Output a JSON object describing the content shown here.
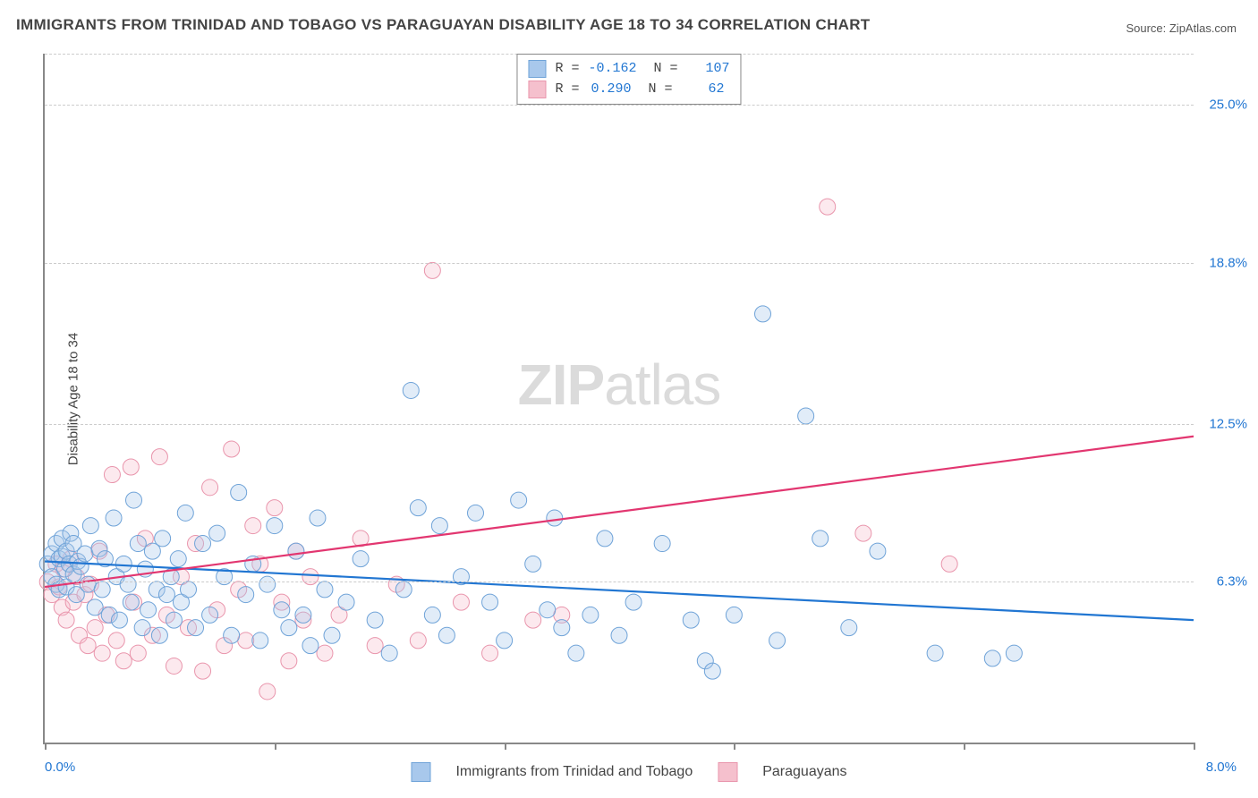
{
  "title": "IMMIGRANTS FROM TRINIDAD AND TOBAGO VS PARAGUAYAN DISABILITY AGE 18 TO 34 CORRELATION CHART",
  "source_prefix": "Source: ",
  "source_name": "ZipAtlas.com",
  "ylabel": "Disability Age 18 to 34",
  "watermark_zip": "ZIP",
  "watermark_atlas": "atlas",
  "chart": {
    "type": "scatter-with-regression",
    "xlim": [
      0,
      8
    ],
    "ylim": [
      0,
      27
    ],
    "x_axis_label_min": "0.0%",
    "x_axis_label_max": "8.0%",
    "x_min_color": "#2176d2",
    "x_max_color": "#2176d2",
    "y_gridlines": [
      6.3,
      12.5,
      18.8,
      25.0
    ],
    "y_grid_labels": [
      "6.3%",
      "12.5%",
      "18.8%",
      "25.0%"
    ],
    "y_grid_label_color": "#2176d2",
    "grid_color": "#cccccc",
    "axis_color": "#888888",
    "background_color": "#ffffff",
    "x_ticks": [
      0.0,
      1.6,
      3.2,
      4.8,
      6.4,
      8.0
    ],
    "marker_radius": 9,
    "marker_stroke_width": 1,
    "marker_fill_opacity": 0.35,
    "line_width": 2.2,
    "series": [
      {
        "name": "Immigrants from Trinidad and Tobago",
        "color_fill": "#a8c8ec",
        "color_stroke": "#6fa3d8",
        "line_color": "#2176d2",
        "R": "-0.162",
        "N": "107",
        "regression": {
          "x1": 0,
          "y1": 7.1,
          "x2": 8,
          "y2": 4.8
        },
        "points": [
          [
            0.02,
            7.0
          ],
          [
            0.05,
            6.5
          ],
          [
            0.05,
            7.4
          ],
          [
            0.08,
            7.8
          ],
          [
            0.08,
            6.2
          ],
          [
            0.1,
            7.2
          ],
          [
            0.1,
            6.0
          ],
          [
            0.12,
            8.0
          ],
          [
            0.12,
            7.3
          ],
          [
            0.14,
            6.8
          ],
          [
            0.15,
            7.5
          ],
          [
            0.15,
            6.1
          ],
          [
            0.17,
            7.0
          ],
          [
            0.18,
            8.2
          ],
          [
            0.2,
            6.6
          ],
          [
            0.2,
            7.8
          ],
          [
            0.22,
            5.8
          ],
          [
            0.23,
            7.1
          ],
          [
            0.25,
            6.9
          ],
          [
            0.28,
            7.4
          ],
          [
            0.3,
            6.2
          ],
          [
            0.32,
            8.5
          ],
          [
            0.35,
            5.3
          ],
          [
            0.38,
            7.6
          ],
          [
            0.4,
            6.0
          ],
          [
            0.42,
            7.2
          ],
          [
            0.45,
            5.0
          ],
          [
            0.48,
            8.8
          ],
          [
            0.5,
            6.5
          ],
          [
            0.52,
            4.8
          ],
          [
            0.55,
            7.0
          ],
          [
            0.58,
            6.2
          ],
          [
            0.6,
            5.5
          ],
          [
            0.62,
            9.5
          ],
          [
            0.65,
            7.8
          ],
          [
            0.68,
            4.5
          ],
          [
            0.7,
            6.8
          ],
          [
            0.72,
            5.2
          ],
          [
            0.75,
            7.5
          ],
          [
            0.78,
            6.0
          ],
          [
            0.8,
            4.2
          ],
          [
            0.82,
            8.0
          ],
          [
            0.85,
            5.8
          ],
          [
            0.88,
            6.5
          ],
          [
            0.9,
            4.8
          ],
          [
            0.93,
            7.2
          ],
          [
            0.95,
            5.5
          ],
          [
            0.98,
            9.0
          ],
          [
            1.0,
            6.0
          ],
          [
            1.05,
            4.5
          ],
          [
            1.1,
            7.8
          ],
          [
            1.15,
            5.0
          ],
          [
            1.2,
            8.2
          ],
          [
            1.25,
            6.5
          ],
          [
            1.3,
            4.2
          ],
          [
            1.35,
            9.8
          ],
          [
            1.4,
            5.8
          ],
          [
            1.45,
            7.0
          ],
          [
            1.5,
            4.0
          ],
          [
            1.55,
            6.2
          ],
          [
            1.6,
            8.5
          ],
          [
            1.65,
            5.2
          ],
          [
            1.7,
            4.5
          ],
          [
            1.75,
            7.5
          ],
          [
            1.8,
            5.0
          ],
          [
            1.85,
            3.8
          ],
          [
            1.9,
            8.8
          ],
          [
            1.95,
            6.0
          ],
          [
            2.0,
            4.2
          ],
          [
            2.1,
            5.5
          ],
          [
            2.2,
            7.2
          ],
          [
            2.3,
            4.8
          ],
          [
            2.4,
            3.5
          ],
          [
            2.5,
            6.0
          ],
          [
            2.55,
            13.8
          ],
          [
            2.6,
            9.2
          ],
          [
            2.7,
            5.0
          ],
          [
            2.75,
            8.5
          ],
          [
            2.8,
            4.2
          ],
          [
            2.9,
            6.5
          ],
          [
            3.0,
            9.0
          ],
          [
            3.1,
            5.5
          ],
          [
            3.2,
            4.0
          ],
          [
            3.3,
            9.5
          ],
          [
            3.4,
            7.0
          ],
          [
            3.5,
            5.2
          ],
          [
            3.55,
            8.8
          ],
          [
            3.6,
            4.5
          ],
          [
            3.7,
            3.5
          ],
          [
            3.8,
            5.0
          ],
          [
            3.9,
            8.0
          ],
          [
            4.0,
            4.2
          ],
          [
            4.1,
            5.5
          ],
          [
            4.3,
            7.8
          ],
          [
            4.5,
            4.8
          ],
          [
            4.6,
            3.2
          ],
          [
            4.65,
            2.8
          ],
          [
            4.8,
            5.0
          ],
          [
            5.0,
            16.8
          ],
          [
            5.1,
            4.0
          ],
          [
            5.3,
            12.8
          ],
          [
            5.6,
            4.5
          ],
          [
            5.8,
            7.5
          ],
          [
            6.2,
            3.5
          ],
          [
            6.6,
            3.3
          ],
          [
            6.75,
            3.5
          ],
          [
            5.4,
            8.0
          ]
        ]
      },
      {
        "name": "Paraguayans",
        "color_fill": "#f5c0cd",
        "color_stroke": "#e995ac",
        "line_color": "#e23670",
        "R": "0.290",
        "N": "62",
        "regression": {
          "x1": 0,
          "y1": 6.1,
          "x2": 8,
          "y2": 12.0
        },
        "points": [
          [
            0.02,
            6.3
          ],
          [
            0.05,
            5.8
          ],
          [
            0.08,
            7.0
          ],
          [
            0.1,
            6.1
          ],
          [
            0.12,
            5.3
          ],
          [
            0.13,
            6.8
          ],
          [
            0.15,
            4.8
          ],
          [
            0.18,
            7.2
          ],
          [
            0.2,
            5.5
          ],
          [
            0.22,
            6.5
          ],
          [
            0.24,
            4.2
          ],
          [
            0.28,
            5.8
          ],
          [
            0.3,
            3.8
          ],
          [
            0.32,
            6.2
          ],
          [
            0.35,
            4.5
          ],
          [
            0.38,
            7.5
          ],
          [
            0.4,
            3.5
          ],
          [
            0.43,
            5.0
          ],
          [
            0.47,
            10.5
          ],
          [
            0.5,
            4.0
          ],
          [
            0.55,
            3.2
          ],
          [
            0.6,
            10.8
          ],
          [
            0.62,
            5.5
          ],
          [
            0.65,
            3.5
          ],
          [
            0.7,
            8.0
          ],
          [
            0.75,
            4.2
          ],
          [
            0.8,
            11.2
          ],
          [
            0.85,
            5.0
          ],
          [
            0.9,
            3.0
          ],
          [
            0.95,
            6.5
          ],
          [
            1.0,
            4.5
          ],
          [
            1.05,
            7.8
          ],
          [
            1.1,
            2.8
          ],
          [
            1.15,
            10.0
          ],
          [
            1.2,
            5.2
          ],
          [
            1.25,
            3.8
          ],
          [
            1.3,
            11.5
          ],
          [
            1.35,
            6.0
          ],
          [
            1.4,
            4.0
          ],
          [
            1.45,
            8.5
          ],
          [
            1.5,
            7.0
          ],
          [
            1.55,
            2.0
          ],
          [
            1.6,
            9.2
          ],
          [
            1.65,
            5.5
          ],
          [
            1.7,
            3.2
          ],
          [
            1.75,
            7.5
          ],
          [
            1.8,
            4.8
          ],
          [
            1.85,
            6.5
          ],
          [
            1.95,
            3.5
          ],
          [
            2.05,
            5.0
          ],
          [
            2.2,
            8.0
          ],
          [
            2.3,
            3.8
          ],
          [
            2.45,
            6.2
          ],
          [
            2.6,
            4.0
          ],
          [
            2.7,
            18.5
          ],
          [
            2.9,
            5.5
          ],
          [
            3.1,
            3.5
          ],
          [
            3.4,
            4.8
          ],
          [
            3.6,
            5.0
          ],
          [
            5.45,
            21.0
          ],
          [
            5.7,
            8.2
          ],
          [
            6.3,
            7.0
          ]
        ]
      }
    ]
  },
  "legend_bottom_items": [
    {
      "swatch_fill": "#a8c8ec",
      "swatch_stroke": "#6fa3d8",
      "label": "Immigrants from Trinidad and Tobago"
    },
    {
      "swatch_fill": "#f5c0cd",
      "swatch_stroke": "#e995ac",
      "label": "Paraguayans"
    }
  ]
}
